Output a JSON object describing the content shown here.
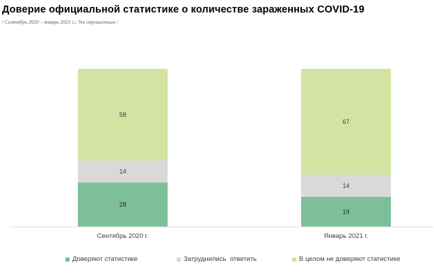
{
  "chart_data": {
    "type": "bar",
    "stacked": true,
    "title": "Доверие официальной статистике о количестве зараженных COVID-19",
    "subtitle": "/ Сентябрь 2020 – январь 2021 г.; %к опрошенным /",
    "categories": [
      "Сентябрь 2020 г.",
      "Январь 2021 г."
    ],
    "series": [
      {
        "name": "Доверяют статистике",
        "values": [
          28,
          19
        ],
        "color": "#7dbf98"
      },
      {
        "name": "Затруднились  ответить",
        "values": [
          14,
          14
        ],
        "color": "#d9d9d9"
      },
      {
        "name": "В целом не доверяют статистике",
        "values": [
          58,
          67
        ],
        "color": "#d3e3a1"
      }
    ],
    "ylim": [
      0,
      100
    ],
    "grid": false,
    "legend_position": "bottom"
  }
}
